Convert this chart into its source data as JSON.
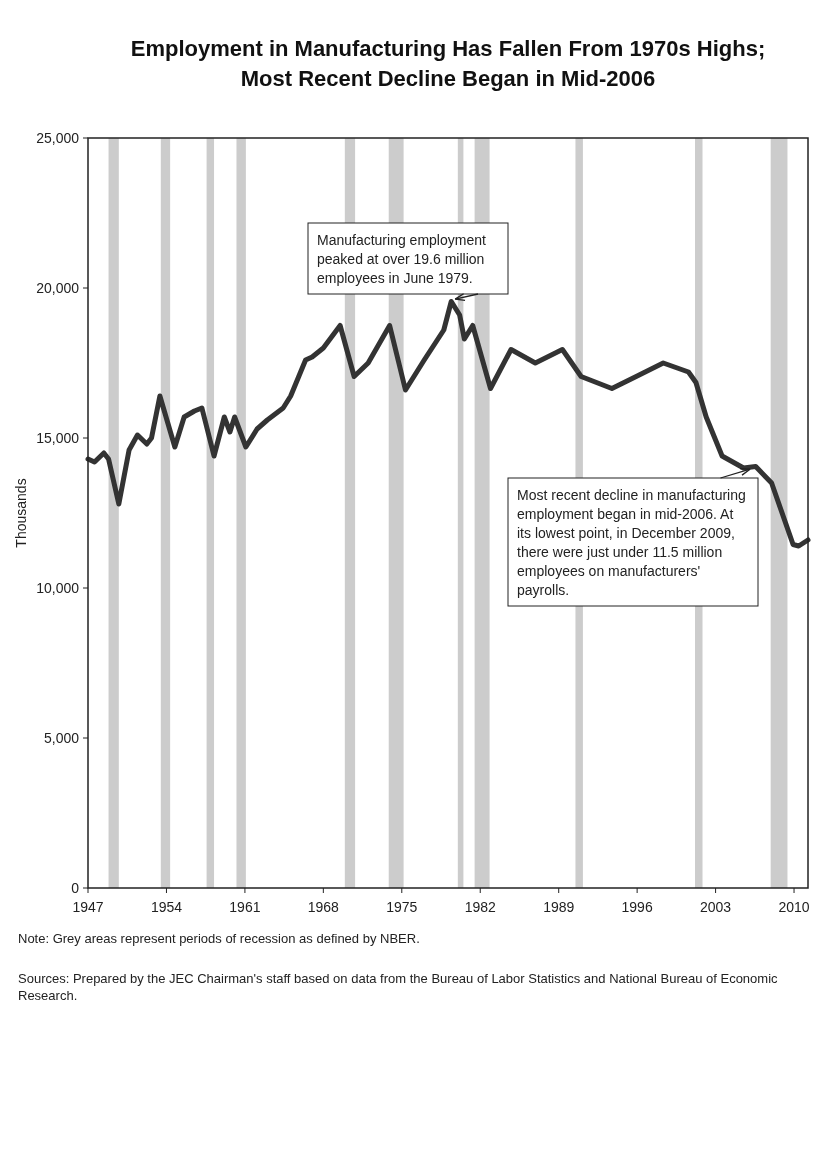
{
  "chart_data": {
    "type": "line",
    "title": "Employment in Manufacturing Has Fallen From 1970s Highs;",
    "subtitle": "Most Recent Decline Began in Mid-2006",
    "ylabel": "Thousands",
    "x": [
      "1947-01",
      "1947-08",
      "1948-06",
      "1948-11",
      "1949-10",
      "1950-09",
      "1951-06",
      "1952-04",
      "1952-09",
      "1953-06",
      "1954-10",
      "1955-08",
      "1956-07",
      "1957-03",
      "1958-04",
      "1959-03",
      "1959-09",
      "1960-02",
      "1961-02",
      "1962-02",
      "1963-01",
      "1964-06",
      "1965-02",
      "1966-06",
      "1967-01",
      "1968-01",
      "1969-07",
      "1970-10",
      "1972-01",
      "1973-12",
      "1975-05",
      "1977-01",
      "1978-10",
      "1979-06",
      "1980-03",
      "1980-08",
      "1981-05",
      "1982-12",
      "1984-10",
      "1986-12",
      "1989-05",
      "1991-01",
      "1993-10",
      "1995-12",
      "1998-05",
      "2000-08",
      "2001-04",
      "2002-03",
      "2003-08",
      "2005-07",
      "2006-08",
      "2008-01",
      "2009-12",
      "2010-06",
      "2011-04"
    ],
    "series": [
      {
        "color": "#333333",
        "values": [
          14300,
          14200,
          14500,
          14300,
          12800,
          14600,
          15100,
          14800,
          15000,
          16400,
          14700,
          15700,
          15900,
          16000,
          14400,
          15700,
          15200,
          15700,
          14700,
          15300,
          15600,
          16000,
          16400,
          17600,
          17700,
          18000,
          18750,
          17050,
          17500,
          18750,
          16600,
          17600,
          18600,
          19550,
          19100,
          18300,
          18750,
          16650,
          17950,
          17500,
          17950,
          17050,
          16650,
          17050,
          17500,
          17200,
          16850,
          15700,
          14400,
          14000,
          14050,
          13500,
          11450,
          11400,
          11600
        ]
      }
    ],
    "xlim": [
      "1947-01",
      "2011-04"
    ],
    "xticks": [
      "1947",
      "1954",
      "1961",
      "1968",
      "1975",
      "1982",
      "1989",
      "1996",
      "2003",
      "2010"
    ],
    "ylim": [
      0,
      25000
    ],
    "yticks": [
      {
        "value": 0,
        "label": "0"
      },
      {
        "value": 5000,
        "label": "5,000"
      },
      {
        "value": 10000,
        "label": "10,000"
      },
      {
        "value": 15000,
        "label": "15,000"
      },
      {
        "value": 20000,
        "label": "20,000"
      },
      {
        "value": 25000,
        "label": "25,000"
      }
    ],
    "bands": [
      {
        "axis": "x",
        "from": "1948-11",
        "to": "1949-10",
        "color": "#cccccc"
      },
      {
        "axis": "x",
        "from": "1953-07",
        "to": "1954-05",
        "color": "#cccccc"
      },
      {
        "axis": "x",
        "from": "1957-08",
        "to": "1958-04",
        "color": "#cccccc"
      },
      {
        "axis": "x",
        "from": "1960-04",
        "to": "1961-02",
        "color": "#cccccc"
      },
      {
        "axis": "x",
        "from": "1969-12",
        "to": "1970-11",
        "color": "#cccccc"
      },
      {
        "axis": "x",
        "from": "1973-11",
        "to": "1975-03",
        "color": "#cccccc"
      },
      {
        "axis": "x",
        "from": "1980-01",
        "to": "1980-07",
        "color": "#cccccc"
      },
      {
        "axis": "x",
        "from": "1981-07",
        "to": "1982-11",
        "color": "#cccccc"
      },
      {
        "axis": "x",
        "from": "1990-07",
        "to": "1991-03",
        "color": "#cccccc"
      },
      {
        "axis": "x",
        "from": "2001-03",
        "to": "2001-11",
        "color": "#cccccc"
      },
      {
        "axis": "x",
        "from": "2007-12",
        "to": "2009-06",
        "color": "#cccccc"
      }
    ],
    "annotations": [
      {
        "text": "Manufacturing employment peaked at over 19.6 million employees in June 1979.",
        "x": "1979-06",
        "y": 19600
      },
      {
        "text": "Most recent decline in manufacturing employment began in mid-2006.  At its lowest point, in December 2009, there were just under 11.5 million employees on manufacturers' payrolls.",
        "x": "2006-06",
        "y": 14000
      },
      "Note: Grey areas represent periods of recession as defined by NBER.",
      "Sources: Prepared by the JEC Chairman's staff based on data from the Bureau of Labor Statistics and National Bureau of Economic Research."
    ],
    "grid": false,
    "marker": "none",
    "line_style": "solid"
  }
}
